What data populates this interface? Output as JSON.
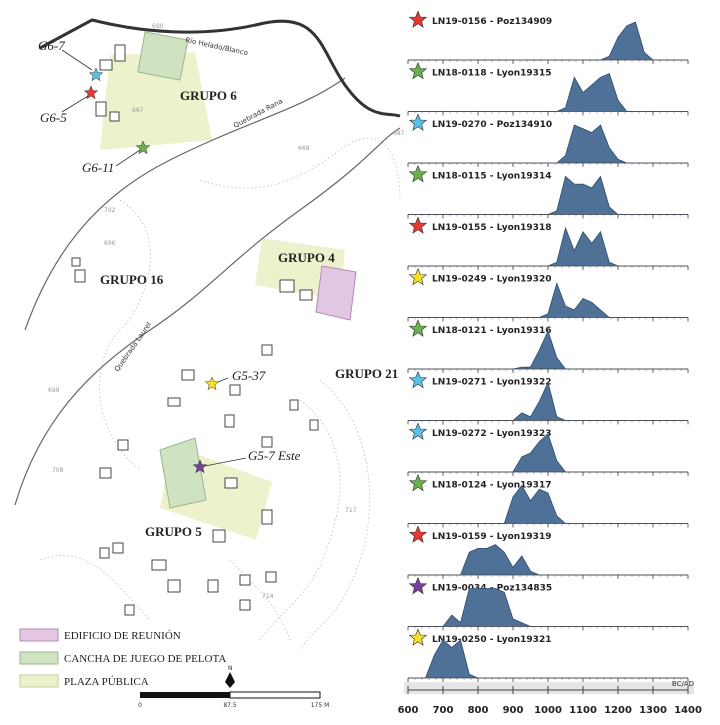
{
  "map": {
    "rivers": [
      "Río Helado/Blanco",
      "Quebrada Rana",
      "Quebrada Laurel"
    ],
    "groups": [
      "GRUPO 6",
      "GRUPO 4",
      "GRUPO 16",
      "GRUPO 21",
      "GRUPO 5"
    ],
    "sites": [
      "G6-7",
      "G6-5",
      "G6-11",
      "G5-37",
      "G5-7 Este"
    ],
    "contour_labels": [
      "690",
      "667",
      "687",
      "668",
      "702",
      "696",
      "699",
      "708",
      "717",
      "714"
    ],
    "legend": [
      "EDIFICIO DE REUNIÓN",
      "CANCHA DE JUEGO DE PELOTA",
      "PLAZA PÚBLICA"
    ],
    "scale": {
      "north": "N",
      "labels": [
        "0",
        "87.5",
        "175 M"
      ]
    }
  },
  "chart_data": {
    "type": "area",
    "fill": "#4f7097",
    "x_axis_label": "BC/AD",
    "xlim": [
      600,
      1400
    ],
    "xticks": [
      600,
      700,
      800,
      900,
      1000,
      1100,
      1200,
      1300,
      1400
    ],
    "x": [
      600,
      625,
      650,
      675,
      700,
      725,
      750,
      775,
      800,
      825,
      850,
      875,
      900,
      925,
      950,
      975,
      1000,
      1025,
      1050,
      1075,
      1100,
      1125,
      1150,
      1175,
      1200,
      1225,
      1250,
      1275,
      1300,
      1325,
      1350,
      1375,
      1400
    ],
    "series": [
      {
        "name": "LN19-0156 - Poz134909",
        "color": "#e53935",
        "values": [
          0,
          0,
          0,
          0,
          0,
          0,
          0,
          0,
          0,
          0,
          0,
          0,
          0,
          0,
          0,
          0,
          0,
          0,
          0,
          0,
          0,
          0,
          0,
          0.1,
          0.6,
          0.9,
          1,
          0.2,
          0,
          0,
          0,
          0,
          0
        ]
      },
      {
        "name": "LN18-0118 - Lyon19315",
        "color": "#6ab04c",
        "values": [
          0,
          0,
          0,
          0,
          0,
          0,
          0,
          0,
          0,
          0,
          0,
          0,
          0,
          0,
          0,
          0,
          0,
          0,
          0.1,
          0.9,
          0.5,
          0.7,
          0.9,
          1,
          0.3,
          0,
          0,
          0,
          0,
          0,
          0,
          0,
          0
        ]
      },
      {
        "name": "LN19-0270 - Poz134910",
        "color": "#5bbfe8",
        "values": [
          0,
          0,
          0,
          0,
          0,
          0,
          0,
          0,
          0,
          0,
          0,
          0,
          0,
          0,
          0,
          0,
          0,
          0,
          0.2,
          1,
          0.9,
          0.8,
          1,
          0.4,
          0.1,
          0,
          0,
          0,
          0,
          0,
          0,
          0,
          0
        ]
      },
      {
        "name": "LN18-0115 - Lyon19314",
        "color": "#6ab04c",
        "values": [
          0,
          0,
          0,
          0,
          0,
          0,
          0,
          0,
          0,
          0,
          0,
          0,
          0,
          0,
          0,
          0,
          0,
          0.1,
          1,
          0.8,
          0.8,
          0.7,
          1,
          0.2,
          0,
          0,
          0,
          0,
          0,
          0,
          0,
          0,
          0
        ]
      },
      {
        "name": "LN19-0155 - Lyon19318",
        "color": "#e53935",
        "values": [
          0,
          0,
          0,
          0,
          0,
          0,
          0,
          0,
          0,
          0,
          0,
          0,
          0,
          0,
          0,
          0,
          0,
          0.1,
          1,
          0.4,
          0.9,
          0.6,
          0.9,
          0.1,
          0,
          0,
          0,
          0,
          0,
          0,
          0,
          0,
          0
        ]
      },
      {
        "name": "LN19-0249 - Lyon19320",
        "color": "#f5e023",
        "values": [
          0,
          0,
          0,
          0,
          0,
          0,
          0,
          0,
          0,
          0,
          0,
          0,
          0,
          0,
          0,
          0,
          0.1,
          0.9,
          0.3,
          0.2,
          0.5,
          0.4,
          0.2,
          0,
          0,
          0,
          0,
          0,
          0,
          0,
          0,
          0,
          0
        ]
      },
      {
        "name": "LN18-0121 - Lyon19316",
        "color": "#6ab04c",
        "values": [
          0,
          0,
          0,
          0,
          0,
          0,
          0,
          0,
          0,
          0,
          0,
          0,
          0,
          0.05,
          0.05,
          0.5,
          1,
          0.3,
          0,
          0,
          0,
          0,
          0,
          0,
          0,
          0,
          0,
          0,
          0,
          0,
          0,
          0,
          0
        ]
      },
      {
        "name": "LN19-0271 - Lyon19322",
        "color": "#5bbfe8",
        "values": [
          0,
          0,
          0,
          0,
          0,
          0,
          0,
          0,
          0,
          0,
          0,
          0,
          0,
          0.2,
          0.1,
          0.5,
          1,
          0.1,
          0,
          0,
          0,
          0,
          0,
          0,
          0,
          0,
          0,
          0,
          0,
          0,
          0,
          0,
          0
        ]
      },
      {
        "name": "LN19-0272 - Lyon19323",
        "color": "#5bbfe8",
        "values": [
          0,
          0,
          0,
          0,
          0,
          0,
          0,
          0,
          0,
          0,
          0,
          0,
          0,
          0.4,
          0.5,
          0.8,
          1,
          0.3,
          0,
          0,
          0,
          0,
          0,
          0,
          0,
          0,
          0,
          0,
          0,
          0,
          0,
          0,
          0
        ]
      },
      {
        "name": "LN18-0124 - Lyon19317",
        "color": "#6ab04c",
        "values": [
          0,
          0,
          0,
          0,
          0,
          0,
          0,
          0,
          0,
          0,
          0,
          0,
          0.7,
          1,
          0.6,
          0.9,
          0.8,
          0.2,
          0,
          0,
          0,
          0,
          0,
          0,
          0,
          0,
          0,
          0,
          0,
          0,
          0,
          0,
          0
        ]
      },
      {
        "name": "LN19-0159 - Lyon19319",
        "color": "#e53935",
        "values": [
          0,
          0,
          0,
          0,
          0,
          0,
          0,
          0.6,
          0.7,
          0.7,
          0.8,
          0.6,
          0.2,
          0.5,
          0.1,
          0,
          0,
          0,
          0,
          0,
          0,
          0,
          0,
          0,
          0,
          0,
          0,
          0,
          0,
          0,
          0,
          0,
          0
        ]
      },
      {
        "name": "LN19-0034 - Poz134835",
        "color": "#7b3fa0",
        "values": [
          0,
          0,
          0,
          0,
          0,
          0.3,
          0.1,
          1,
          1,
          1,
          1,
          0.9,
          0.2,
          0.1,
          0,
          0,
          0,
          0,
          0,
          0,
          0,
          0,
          0,
          0,
          0,
          0,
          0,
          0,
          0,
          0,
          0,
          0,
          0
        ]
      },
      {
        "name": "LN19-0250 - Lyon19321",
        "color": "#f5e023",
        "values": [
          0,
          0,
          0,
          0.6,
          1,
          0.8,
          1,
          0.1,
          0,
          0,
          0,
          0,
          0,
          0,
          0,
          0,
          0,
          0,
          0,
          0,
          0,
          0,
          0,
          0,
          0,
          0,
          0,
          0,
          0,
          0,
          0,
          0,
          0
        ]
      }
    ]
  }
}
